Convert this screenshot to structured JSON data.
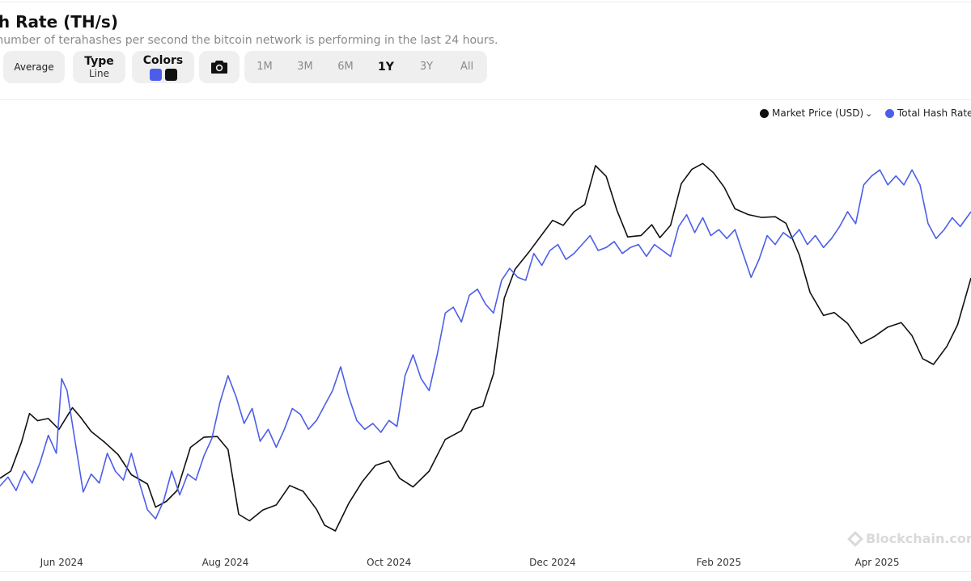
{
  "header": {
    "title": "sh Rate (TH/s)",
    "subtitle": "d number of terahashes per second the bitcoin network is performing in the last 24 hours."
  },
  "controls": {
    "average_label": "Average",
    "type_label": "Type",
    "type_value": "Line",
    "colors_label": "Colors",
    "color_swatches": [
      "#4c5ee8",
      "#111111"
    ],
    "camera_icon": "camera-icon",
    "ranges": [
      "1M",
      "3M",
      "6M",
      "1Y",
      "3Y",
      "All"
    ],
    "active_range": "1Y"
  },
  "legend": {
    "price_label": "Market Price (USD)",
    "hash_label": "Total Hash Rate"
  },
  "watermark": "Blockchain.com",
  "chart_data": {
    "type": "line",
    "x_ticks": [
      "Jun 2024",
      "Aug 2024",
      "Oct 2024",
      "Dec 2024",
      "Feb 2025",
      "Apr 2025"
    ],
    "x_domain": [
      "2024-05-09",
      "2025-05-06"
    ],
    "grid": false,
    "legend_position": "top-right",
    "series": [
      {
        "name": "Market Price (USD)",
        "color": "#111111",
        "axis": "right",
        "points": [
          [
            "2024-05-09",
            61000
          ],
          [
            "2024-05-13",
            62000
          ],
          [
            "2024-05-17",
            66000
          ],
          [
            "2024-05-20",
            70000
          ],
          [
            "2024-05-23",
            69000
          ],
          [
            "2024-05-27",
            69300
          ],
          [
            "2024-05-31",
            67800
          ],
          [
            "2024-06-05",
            70800
          ],
          [
            "2024-06-08",
            69500
          ],
          [
            "2024-06-12",
            67500
          ],
          [
            "2024-06-17",
            66000
          ],
          [
            "2024-06-22",
            64300
          ],
          [
            "2024-06-27",
            61500
          ],
          [
            "2024-07-03",
            60200
          ],
          [
            "2024-07-06",
            57000
          ],
          [
            "2024-07-10",
            57800
          ],
          [
            "2024-07-14",
            59300
          ],
          [
            "2024-07-19",
            65300
          ],
          [
            "2024-07-24",
            66700
          ],
          [
            "2024-07-29",
            66800
          ],
          [
            "2024-08-02",
            65000
          ],
          [
            "2024-08-06",
            56000
          ],
          [
            "2024-08-10",
            55100
          ],
          [
            "2024-08-15",
            56600
          ],
          [
            "2024-08-20",
            57300
          ],
          [
            "2024-08-25",
            60000
          ],
          [
            "2024-08-30",
            59200
          ],
          [
            "2024-09-04",
            56700
          ],
          [
            "2024-09-07",
            54500
          ],
          [
            "2024-09-11",
            53700
          ],
          [
            "2024-09-16",
            57500
          ],
          [
            "2024-09-21",
            60500
          ],
          [
            "2024-09-26",
            62800
          ],
          [
            "2024-10-01",
            63400
          ],
          [
            "2024-10-05",
            61000
          ],
          [
            "2024-10-10",
            59800
          ],
          [
            "2024-10-16",
            62000
          ],
          [
            "2024-10-22",
            66400
          ],
          [
            "2024-10-28",
            67600
          ],
          [
            "2024-11-01",
            70500
          ],
          [
            "2024-11-05",
            71000
          ],
          [
            "2024-11-09",
            75500
          ],
          [
            "2024-11-13",
            86000
          ],
          [
            "2024-11-17",
            90000
          ],
          [
            "2024-11-22",
            92300
          ],
          [
            "2024-11-27",
            94800
          ],
          [
            "2024-12-01",
            96800
          ],
          [
            "2024-12-05",
            96100
          ],
          [
            "2024-12-09",
            98000
          ],
          [
            "2024-12-13",
            99000
          ],
          [
            "2024-12-17",
            104400
          ],
          [
            "2024-12-21",
            102900
          ],
          [
            "2024-12-25",
            98200
          ],
          [
            "2024-12-29",
            94500
          ],
          [
            "2025-01-03",
            94700
          ],
          [
            "2025-01-07",
            96200
          ],
          [
            "2025-01-10",
            94400
          ],
          [
            "2025-01-14",
            96100
          ],
          [
            "2025-01-18",
            101900
          ],
          [
            "2025-01-22",
            103900
          ],
          [
            "2025-01-26",
            104700
          ],
          [
            "2025-01-30",
            103400
          ],
          [
            "2025-02-03",
            101400
          ],
          [
            "2025-02-07",
            98400
          ],
          [
            "2025-02-12",
            97600
          ],
          [
            "2025-02-17",
            97200
          ],
          [
            "2025-02-22",
            97300
          ],
          [
            "2025-02-26",
            96400
          ],
          [
            "2025-03-03",
            92000
          ],
          [
            "2025-03-07",
            86800
          ],
          [
            "2025-03-12",
            83600
          ],
          [
            "2025-03-16",
            84000
          ],
          [
            "2025-03-21",
            82500
          ],
          [
            "2025-03-26",
            79700
          ],
          [
            "2025-03-31",
            80700
          ],
          [
            "2025-04-05",
            82000
          ],
          [
            "2025-04-10",
            82600
          ],
          [
            "2025-04-14",
            80800
          ],
          [
            "2025-04-18",
            77600
          ],
          [
            "2025-04-22",
            76800
          ],
          [
            "2025-04-27",
            79300
          ],
          [
            "2025-05-01",
            82300
          ],
          [
            "2025-05-06",
            88800
          ]
        ]
      },
      {
        "name": "Total Hash Rate",
        "color": "#4c5ee8",
        "axis": "left",
        "points": [
          [
            "2024-05-09",
            588
          ],
          [
            "2024-05-12",
            594
          ],
          [
            "2024-05-15",
            585
          ],
          [
            "2024-05-18",
            598
          ],
          [
            "2024-05-21",
            590
          ],
          [
            "2024-05-24",
            604
          ],
          [
            "2024-05-27",
            622
          ],
          [
            "2024-05-30",
            610
          ],
          [
            "2024-06-01",
            660
          ],
          [
            "2024-06-03",
            652
          ],
          [
            "2024-06-06",
            618
          ],
          [
            "2024-06-09",
            584
          ],
          [
            "2024-06-12",
            596
          ],
          [
            "2024-06-15",
            590
          ],
          [
            "2024-06-18",
            610
          ],
          [
            "2024-06-21",
            598
          ],
          [
            "2024-06-24",
            592
          ],
          [
            "2024-06-27",
            610
          ],
          [
            "2024-06-30",
            590
          ],
          [
            "2024-07-03",
            572
          ],
          [
            "2024-07-06",
            566
          ],
          [
            "2024-07-09",
            578
          ],
          [
            "2024-07-12",
            598
          ],
          [
            "2024-07-15",
            582
          ],
          [
            "2024-07-18",
            596
          ],
          [
            "2024-07-21",
            592
          ],
          [
            "2024-07-24",
            608
          ],
          [
            "2024-07-27",
            620
          ],
          [
            "2024-07-30",
            644
          ],
          [
            "2024-08-02",
            662
          ],
          [
            "2024-08-05",
            648
          ],
          [
            "2024-08-08",
            630
          ],
          [
            "2024-08-11",
            640
          ],
          [
            "2024-08-14",
            618
          ],
          [
            "2024-08-17",
            626
          ],
          [
            "2024-08-20",
            614
          ],
          [
            "2024-08-23",
            626
          ],
          [
            "2024-08-26",
            640
          ],
          [
            "2024-08-29",
            636
          ],
          [
            "2024-09-01",
            626
          ],
          [
            "2024-09-04",
            632
          ],
          [
            "2024-09-07",
            642
          ],
          [
            "2024-09-10",
            652
          ],
          [
            "2024-09-13",
            668
          ],
          [
            "2024-09-16",
            648
          ],
          [
            "2024-09-19",
            632
          ],
          [
            "2024-09-22",
            626
          ],
          [
            "2024-09-25",
            630
          ],
          [
            "2024-09-28",
            624
          ],
          [
            "2024-10-01",
            632
          ],
          [
            "2024-10-04",
            628
          ],
          [
            "2024-10-07",
            662
          ],
          [
            "2024-10-10",
            676
          ],
          [
            "2024-10-13",
            660
          ],
          [
            "2024-10-16",
            652
          ],
          [
            "2024-10-19",
            676
          ],
          [
            "2024-10-22",
            704
          ],
          [
            "2024-10-25",
            708
          ],
          [
            "2024-10-28",
            698
          ],
          [
            "2024-10-31",
            716
          ],
          [
            "2024-11-03",
            720
          ],
          [
            "2024-11-06",
            710
          ],
          [
            "2024-11-09",
            704
          ],
          [
            "2024-11-12",
            726
          ],
          [
            "2024-11-15",
            734
          ],
          [
            "2024-11-18",
            728
          ],
          [
            "2024-11-21",
            726
          ],
          [
            "2024-11-24",
            744
          ],
          [
            "2024-11-27",
            736
          ],
          [
            "2024-11-30",
            746
          ],
          [
            "2024-12-03",
            750
          ],
          [
            "2024-12-06",
            740
          ],
          [
            "2024-12-09",
            744
          ],
          [
            "2024-12-12",
            750
          ],
          [
            "2024-12-15",
            756
          ],
          [
            "2024-12-18",
            746
          ],
          [
            "2024-12-21",
            748
          ],
          [
            "2024-12-24",
            752
          ],
          [
            "2024-12-27",
            744
          ],
          [
            "2024-12-30",
            748
          ],
          [
            "2025-01-02",
            750
          ],
          [
            "2025-01-05",
            742
          ],
          [
            "2025-01-08",
            750
          ],
          [
            "2025-01-11",
            746
          ],
          [
            "2025-01-14",
            742
          ],
          [
            "2025-01-17",
            762
          ],
          [
            "2025-01-20",
            770
          ],
          [
            "2025-01-23",
            758
          ],
          [
            "2025-01-26",
            768
          ],
          [
            "2025-01-29",
            756
          ],
          [
            "2025-02-01",
            760
          ],
          [
            "2025-02-04",
            754
          ],
          [
            "2025-02-07",
            760
          ],
          [
            "2025-02-10",
            744
          ],
          [
            "2025-02-13",
            728
          ],
          [
            "2025-02-16",
            740
          ],
          [
            "2025-02-19",
            756
          ],
          [
            "2025-02-22",
            750
          ],
          [
            "2025-02-25",
            758
          ],
          [
            "2025-02-28",
            754
          ],
          [
            "2025-03-03",
            760
          ],
          [
            "2025-03-06",
            750
          ],
          [
            "2025-03-09",
            756
          ],
          [
            "2025-03-12",
            748
          ],
          [
            "2025-03-15",
            754
          ],
          [
            "2025-03-18",
            762
          ],
          [
            "2025-03-21",
            772
          ],
          [
            "2025-03-24",
            764
          ],
          [
            "2025-03-27",
            790
          ],
          [
            "2025-03-30",
            796
          ],
          [
            "2025-04-02",
            800
          ],
          [
            "2025-04-05",
            790
          ],
          [
            "2025-04-08",
            796
          ],
          [
            "2025-04-11",
            790
          ],
          [
            "2025-04-14",
            800
          ],
          [
            "2025-04-17",
            790
          ],
          [
            "2025-04-20",
            764
          ],
          [
            "2025-04-23",
            754
          ],
          [
            "2025-04-26",
            760
          ],
          [
            "2025-04-29",
            768
          ],
          [
            "2025-05-02",
            762
          ],
          [
            "2025-05-06",
            772
          ]
        ]
      }
    ]
  }
}
